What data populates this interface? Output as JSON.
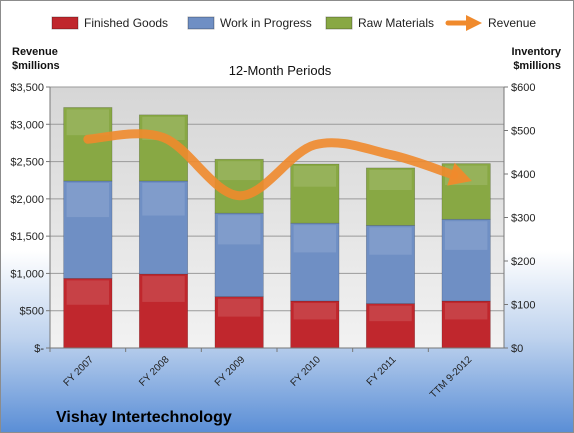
{
  "chart_data": {
    "type": "bar",
    "subtitle": "12-Month Periods",
    "company": "Vishay Intertechnology",
    "left_axis_label": [
      "Revenue",
      "$millions"
    ],
    "right_axis_label": [
      "Inventory",
      "$millions"
    ],
    "categories": [
      "FY 2007",
      "FY 2008",
      "FY 2009",
      "FY 2010",
      "FY 2011",
      "TTM 9-2012"
    ],
    "left_ylim": [
      0,
      3500
    ],
    "right_ylim": [
      0,
      600
    ],
    "left_ticks": [
      "$-",
      "$500",
      "$1,000",
      "$1,500",
      "$2,000",
      "$2,500",
      "$3,000",
      "$3,500"
    ],
    "right_ticks": [
      "$0",
      "$100",
      "$200",
      "$300",
      "$400",
      "$500",
      "$600"
    ],
    "stack_axis": "right",
    "series": [
      {
        "name": "Finished Goods",
        "color": "#C0272D",
        "values": [
          160,
          170,
          118,
          108,
          102,
          108
        ]
      },
      {
        "name": "Work in Progress",
        "color": "#6F8FC4",
        "values": [
          224,
          214,
          192,
          179,
          180,
          188
        ]
      },
      {
        "name": "Raw Materials",
        "color": "#88A844",
        "values": [
          169,
          152,
          124,
          136,
          132,
          128
        ]
      }
    ],
    "line_series": {
      "name": "Revenue",
      "axis": "left",
      "color": "#F08A2C",
      "values": [
        2800,
        2822,
        2042,
        2725,
        2594,
        2265
      ]
    },
    "legend": "top",
    "grid": true
  }
}
